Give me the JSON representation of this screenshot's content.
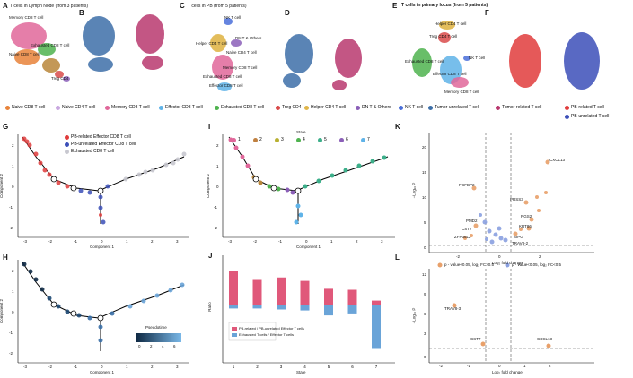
{
  "panels": {
    "A": "A",
    "B": "B",
    "C": "C",
    "D": "D",
    "E": "E",
    "F": "F",
    "G": "G",
    "H": "H",
    "I": "I",
    "J": "J",
    "K": "K",
    "L": "L"
  },
  "titles": {
    "a": "T cells in Lymph Node (from 3 patients)",
    "c": "T cells in PB (from 5 patients)",
    "e": "T cells in primary locus (from 5 patients)"
  },
  "umap_labels": {
    "a": [
      "Memory CD8 T cell",
      "Exhausted CD8 T cell",
      "Naive CD8 T cell",
      "Treg CD4"
    ],
    "c": [
      "NK T cell",
      "Helper CD4 T cell",
      "DN T & Others",
      "Naive CD4 T cell",
      "Memory CD8 T cell",
      "Exhausted CD8 T cell",
      "Effector CD8 T cell"
    ],
    "e": [
      "Helper CD4 T cell",
      "Treg CD4 T cell",
      "Exhausted CD8 T cell",
      "NK T cell",
      "Effector CD8 T cell",
      "Memory CD8 T cell"
    ]
  },
  "legend_main": [
    {
      "label": "Naive CD8 T cell",
      "color": "#e8833a"
    },
    {
      "label": "Naive CD4 T cell",
      "color": "#c9a8e0"
    },
    {
      "label": "Memory CD8 T cell",
      "color": "#e0679a"
    },
    {
      "label": "Effector CD8 T cell",
      "color": "#5fb3e8"
    },
    {
      "label": "Exhausted CD8 T cell",
      "color": "#4fb34f"
    },
    {
      "label": "Treg CD4",
      "color": "#d94b4b"
    },
    {
      "label": "Helper CD4 T cell",
      "color": "#e0b64a"
    },
    {
      "label": "DN T & Others",
      "color": "#8b5fb8"
    },
    {
      "label": "NK T cell",
      "color": "#4a6fd9"
    },
    {
      "label": "Tumor-unrelated T cell",
      "color": "#3d6fa8"
    },
    {
      "label": "Tumor-related T cell",
      "color": "#b8386e"
    },
    {
      "label": "PB-related T cell",
      "color": "#e03c3c"
    },
    {
      "label": "PB-unrelated T cell",
      "color": "#3c4fb8"
    }
  ],
  "legend_g": [
    "PB-related Effector CD8 T cell",
    "PB-unrelated Effector CD8 T cell",
    "Exhausted CD8 T cell"
  ],
  "legend_i": {
    "title": "State",
    "items": [
      "1",
      "2",
      "3",
      "4",
      "5",
      "6",
      "7"
    ]
  },
  "pseudotime": {
    "title": "Pseudotime",
    "ticks": [
      "0",
      "2",
      "4",
      "6"
    ]
  },
  "axes": {
    "c1": "Component 1",
    "c2": "Component 2",
    "ratio": "Ratio",
    "state": "State",
    "lfc": "Log₂ fold change",
    "p": "−Log₁₀ P"
  },
  "traj_ticks_x": [
    "-3",
    "-2",
    "-1",
    "0",
    "1",
    "2",
    "3"
  ],
  "traj_ticks_y": [
    "2",
    "1",
    "0",
    "-1",
    "-2"
  ],
  "volcano_k_genes": [
    "CXCL13",
    "FGFBP2",
    "PRSS3",
    "RGS2",
    "KRT86",
    "PMD2",
    "CST7",
    "ZFP36L2",
    "TRAV8-2",
    "SIPG"
  ],
  "volcano_l_genes": [
    "TRAV8-3",
    "CST7",
    "CXCL13"
  ],
  "volcano_l_legend": [
    "p - value<0.05, log₂ FC>0.5",
    "p - value<0.05, log₂ FC<0.5"
  ],
  "k_yticks": [
    "20",
    "15",
    "10",
    "5",
    "0"
  ],
  "k_xticks": [
    "-2",
    "0",
    "2"
  ],
  "l_yticks": [
    "12",
    "9",
    "6",
    "3",
    "0"
  ],
  "l_xticks": [
    "-2",
    "-1",
    "0",
    "1",
    "2"
  ],
  "chart_data": [
    {
      "type": "bar",
      "title": "",
      "xlabel": "State",
      "ylabel": "Ratio",
      "categories": [
        "1",
        "2",
        "3",
        "4",
        "5",
        "6",
        "7"
      ],
      "series": [
        {
          "name": "PB-related / PB-unrelated Effector T cells",
          "values": [
            0.68,
            0.5,
            0.55,
            0.48,
            0.32,
            0.3,
            0.08
          ]
        },
        {
          "name": "Exhausted T cells / Effector T cells",
          "values": [
            0.08,
            0.08,
            0.1,
            0.12,
            0.22,
            0.18,
            0.9
          ]
        }
      ],
      "legend": "bottom-left"
    },
    {
      "type": "scatter",
      "title": "",
      "xlabel": "Log2 fold change",
      "ylabel": "-Log10 P",
      "xlim": [
        -3,
        3
      ],
      "ylim": [
        0,
        22
      ],
      "series": [
        {
          "name": "CXCL13",
          "x": 2.0,
          "y": 17
        },
        {
          "name": "FGFBP2",
          "x": -1.5,
          "y": 11.5
        },
        {
          "name": "PRSS3",
          "x": 0.5,
          "y": 10
        }
      ]
    }
  ]
}
